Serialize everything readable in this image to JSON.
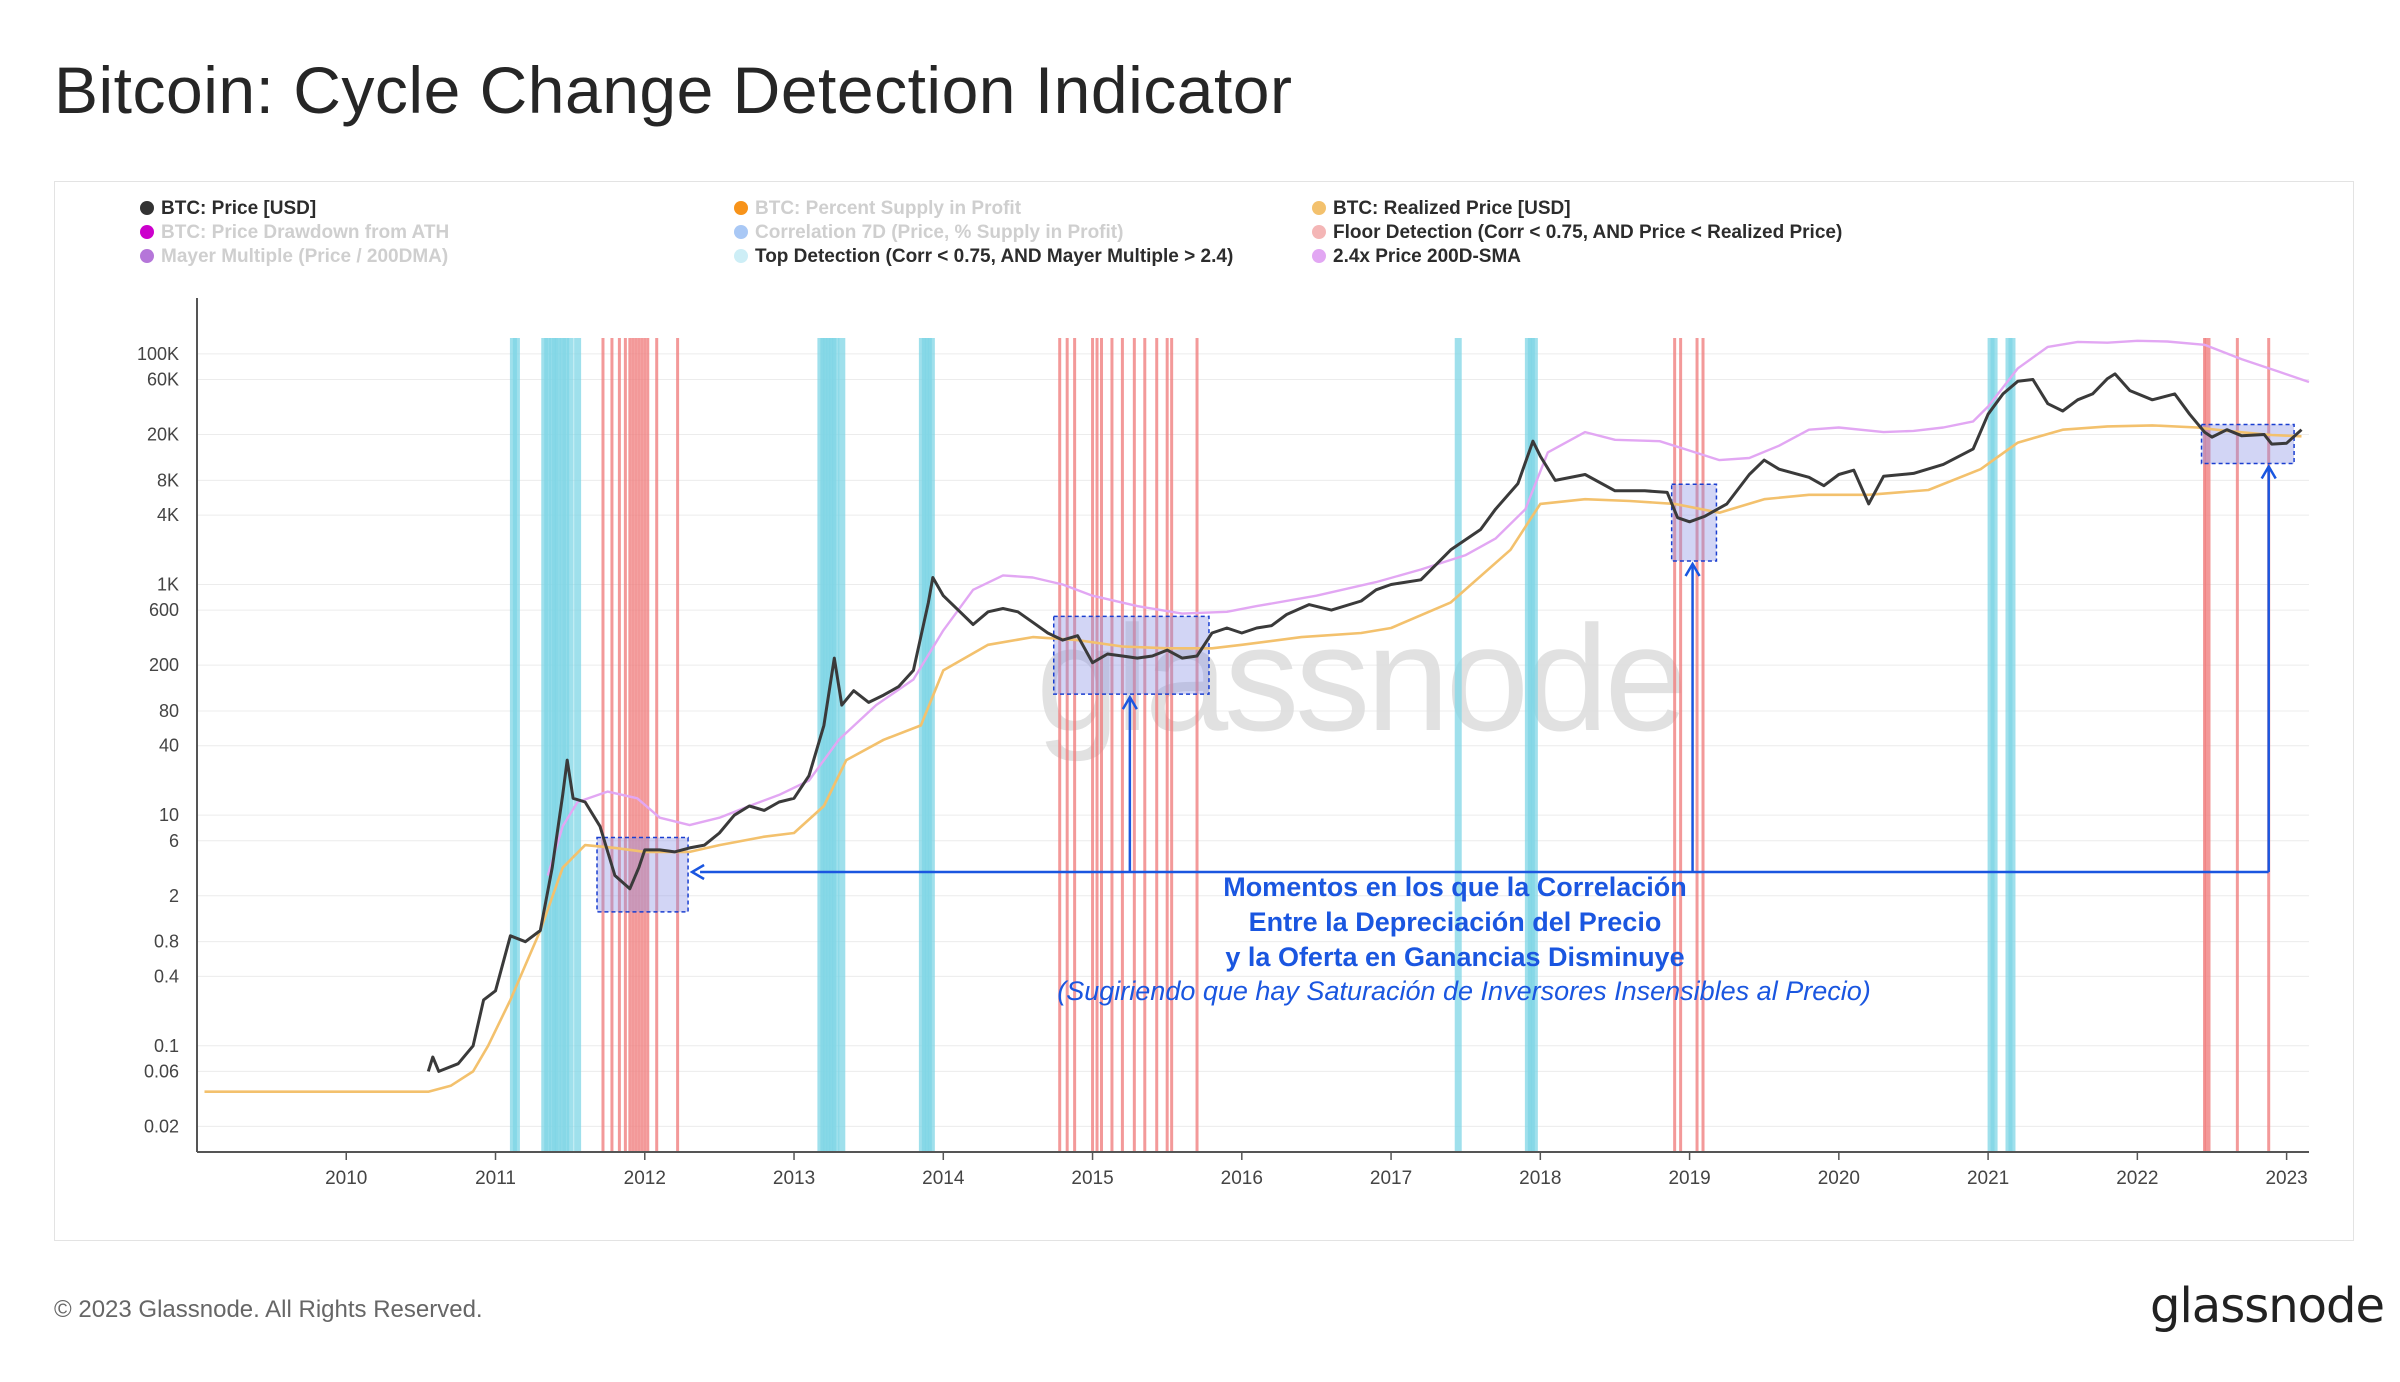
{
  "title": "Bitcoin: Cycle Change Detection Indicator",
  "footer": "© 2023 Glassnode. All Rights Reserved.",
  "brand": "glassnode",
  "chart_data": {
    "type": "line",
    "title": "Bitcoin: Cycle Change Detection Indicator",
    "watermark": "glassnode",
    "yscale": "log",
    "ylim": [
      0.012,
      250000
    ],
    "xlim": [
      2009.0,
      2023.15
    ],
    "y_ticks": [
      {
        "v": 0.02,
        "label": "0.02"
      },
      {
        "v": 0.06,
        "label": "0.06"
      },
      {
        "v": 0.1,
        "label": "0.1"
      },
      {
        "v": 0.4,
        "label": "0.4"
      },
      {
        "v": 0.8,
        "label": "0.8"
      },
      {
        "v": 2,
        "label": "2"
      },
      {
        "v": 6,
        "label": "6"
      },
      {
        "v": 10,
        "label": "10"
      },
      {
        "v": 40,
        "label": "40"
      },
      {
        "v": 80,
        "label": "80"
      },
      {
        "v": 200,
        "label": "200"
      },
      {
        "v": 600,
        "label": "600"
      },
      {
        "v": 1000,
        "label": "1K"
      },
      {
        "v": 4000,
        "label": "4K"
      },
      {
        "v": 8000,
        "label": "8K"
      },
      {
        "v": 20000,
        "label": "20K"
      },
      {
        "v": 60000,
        "label": "60K"
      },
      {
        "v": 100000,
        "label": "100K"
      }
    ],
    "x_ticks": [
      {
        "v": 2010,
        "label": "2010"
      },
      {
        "v": 2011,
        "label": "2011"
      },
      {
        "v": 2012,
        "label": "2012"
      },
      {
        "v": 2013,
        "label": "2013"
      },
      {
        "v": 2014,
        "label": "2014"
      },
      {
        "v": 2015,
        "label": "2015"
      },
      {
        "v": 2016,
        "label": "2016"
      },
      {
        "v": 2017,
        "label": "2017"
      },
      {
        "v": 2018,
        "label": "2018"
      },
      {
        "v": 2019,
        "label": "2019"
      },
      {
        "v": 2020,
        "label": "2020"
      },
      {
        "v": 2021,
        "label": "2021"
      },
      {
        "v": 2022,
        "label": "2022"
      },
      {
        "v": 2023,
        "label": "2023"
      }
    ],
    "legend": [
      {
        "label": "BTC: Price [USD]",
        "color": "#333333",
        "active": true
      },
      {
        "label": "BTC: Percent Supply in Profit",
        "color": "#f7931a",
        "active": false
      },
      {
        "label": "BTC: Realized Price [USD]",
        "color": "#f3c16d",
        "active": true
      },
      {
        "label": "BTC: Price Drawdown from ATH",
        "color": "#cc00cc",
        "active": false
      },
      {
        "label": "Correlation 7D (Price, % Supply in Profit)",
        "color": "#a9c8f5",
        "active": false
      },
      {
        "label": "Floor Detection (Corr < 0.75, AND Price < Realized Price)",
        "color": "#f4b6b6",
        "active": true
      },
      {
        "label": "Mayer Multiple (Price / 200DMA)",
        "color": "#b576d9",
        "active": false
      },
      {
        "label": "Top Detection (Corr < 0.75, AND Mayer Multiple > 2.4)",
        "color": "#cdeef6",
        "active": true
      },
      {
        "label": "2.4x Price 200D-SMA",
        "color": "#e2a7f3",
        "active": true
      }
    ],
    "annotation": {
      "lines": [
        "Momentos en los que la Correlación",
        "Entre la Depreciación del Precio",
        "y la Oferta en Ganancias Disminuye"
      ],
      "subtitle": "(Sugiriendo que hay Saturación de Inversores Insensibles al Precio)",
      "color": "#1a56e0"
    },
    "series": [
      {
        "name": "BTC: Price [USD]",
        "color": "#3a3a3a",
        "points": [
          [
            2010.55,
            0.06
          ],
          [
            2010.58,
            0.08
          ],
          [
            2010.62,
            0.06
          ],
          [
            2010.75,
            0.07
          ],
          [
            2010.85,
            0.1
          ],
          [
            2010.92,
            0.25
          ],
          [
            2011.0,
            0.3
          ],
          [
            2011.1,
            0.9
          ],
          [
            2011.2,
            0.8
          ],
          [
            2011.3,
            1.0
          ],
          [
            2011.38,
            3.5
          ],
          [
            2011.45,
            15
          ],
          [
            2011.48,
            30
          ],
          [
            2011.52,
            14
          ],
          [
            2011.6,
            13
          ],
          [
            2011.7,
            8
          ],
          [
            2011.8,
            3
          ],
          [
            2011.9,
            2.3
          ],
          [
            2011.96,
            3.5
          ],
          [
            2012.0,
            5
          ],
          [
            2012.1,
            5
          ],
          [
            2012.2,
            4.8
          ],
          [
            2012.3,
            5.2
          ],
          [
            2012.4,
            5.5
          ],
          [
            2012.5,
            7
          ],
          [
            2012.6,
            10
          ],
          [
            2012.7,
            12
          ],
          [
            2012.8,
            11
          ],
          [
            2012.9,
            13
          ],
          [
            2013.0,
            14
          ],
          [
            2013.1,
            22
          ],
          [
            2013.2,
            60
          ],
          [
            2013.27,
            230
          ],
          [
            2013.32,
            90
          ],
          [
            2013.4,
            120
          ],
          [
            2013.5,
            95
          ],
          [
            2013.6,
            110
          ],
          [
            2013.7,
            130
          ],
          [
            2013.8,
            180
          ],
          [
            2013.9,
            700
          ],
          [
            2013.93,
            1150
          ],
          [
            2014.0,
            800
          ],
          [
            2014.1,
            600
          ],
          [
            2014.2,
            450
          ],
          [
            2014.3,
            580
          ],
          [
            2014.4,
            620
          ],
          [
            2014.5,
            580
          ],
          [
            2014.6,
            470
          ],
          [
            2014.7,
            380
          ],
          [
            2014.8,
            330
          ],
          [
            2014.9,
            360
          ],
          [
            2015.0,
            210
          ],
          [
            2015.1,
            250
          ],
          [
            2015.2,
            240
          ],
          [
            2015.3,
            230
          ],
          [
            2015.4,
            240
          ],
          [
            2015.5,
            270
          ],
          [
            2015.6,
            230
          ],
          [
            2015.7,
            240
          ],
          [
            2015.8,
            380
          ],
          [
            2015.9,
            420
          ],
          [
            2016.0,
            380
          ],
          [
            2016.1,
            420
          ],
          [
            2016.2,
            440
          ],
          [
            2016.3,
            550
          ],
          [
            2016.45,
            670
          ],
          [
            2016.6,
            600
          ],
          [
            2016.8,
            720
          ],
          [
            2016.9,
            900
          ],
          [
            2017.0,
            1000
          ],
          [
            2017.2,
            1100
          ],
          [
            2017.4,
            2000
          ],
          [
            2017.6,
            3000
          ],
          [
            2017.7,
            4500
          ],
          [
            2017.85,
            7500
          ],
          [
            2017.95,
            17500
          ],
          [
            2018.0,
            13000
          ],
          [
            2018.1,
            8000
          ],
          [
            2018.3,
            9000
          ],
          [
            2018.5,
            6500
          ],
          [
            2018.7,
            6500
          ],
          [
            2018.85,
            6300
          ],
          [
            2018.92,
            3800
          ],
          [
            2019.0,
            3500
          ],
          [
            2019.1,
            3900
          ],
          [
            2019.25,
            5000
          ],
          [
            2019.4,
            9000
          ],
          [
            2019.5,
            12000
          ],
          [
            2019.6,
            10000
          ],
          [
            2019.8,
            8500
          ],
          [
            2019.9,
            7200
          ],
          [
            2020.0,
            9000
          ],
          [
            2020.1,
            9800
          ],
          [
            2020.2,
            5000
          ],
          [
            2020.3,
            8700
          ],
          [
            2020.5,
            9200
          ],
          [
            2020.7,
            11000
          ],
          [
            2020.9,
            15000
          ],
          [
            2021.0,
            30000
          ],
          [
            2021.1,
            45000
          ],
          [
            2021.2,
            58000
          ],
          [
            2021.3,
            60000
          ],
          [
            2021.4,
            37000
          ],
          [
            2021.5,
            32000
          ],
          [
            2021.6,
            40000
          ],
          [
            2021.7,
            45000
          ],
          [
            2021.8,
            61000
          ],
          [
            2021.85,
            67000
          ],
          [
            2021.95,
            48000
          ],
          [
            2022.1,
            40000
          ],
          [
            2022.25,
            45000
          ],
          [
            2022.35,
            30000
          ],
          [
            2022.45,
            21000
          ],
          [
            2022.5,
            19000
          ],
          [
            2022.6,
            22000
          ],
          [
            2022.7,
            19500
          ],
          [
            2022.85,
            20000
          ],
          [
            2022.9,
            16500
          ],
          [
            2023.0,
            16800
          ],
          [
            2023.1,
            22000
          ]
        ]
      },
      {
        "name": "BTC: Realized Price [USD]",
        "color": "#f3c16d",
        "points": [
          [
            2009.05,
            0.04
          ],
          [
            2010.55,
            0.04
          ],
          [
            2010.7,
            0.045
          ],
          [
            2010.85,
            0.06
          ],
          [
            2010.95,
            0.1
          ],
          [
            2011.1,
            0.25
          ],
          [
            2011.3,
            1.0
          ],
          [
            2011.45,
            3.5
          ],
          [
            2011.6,
            5.5
          ],
          [
            2011.8,
            5.2
          ],
          [
            2012.0,
            4.8
          ],
          [
            2012.3,
            4.8
          ],
          [
            2012.5,
            5.5
          ],
          [
            2012.8,
            6.5
          ],
          [
            2013.0,
            7
          ],
          [
            2013.2,
            12
          ],
          [
            2013.35,
            30
          ],
          [
            2013.6,
            45
          ],
          [
            2013.85,
            60
          ],
          [
            2014.0,
            180
          ],
          [
            2014.3,
            300
          ],
          [
            2014.6,
            350
          ],
          [
            2014.9,
            330
          ],
          [
            2015.2,
            290
          ],
          [
            2015.5,
            280
          ],
          [
            2015.8,
            280
          ],
          [
            2016.0,
            300
          ],
          [
            2016.4,
            350
          ],
          [
            2016.8,
            380
          ],
          [
            2017.0,
            420
          ],
          [
            2017.4,
            700
          ],
          [
            2017.8,
            2000
          ],
          [
            2018.0,
            5000
          ],
          [
            2018.3,
            5500
          ],
          [
            2018.6,
            5300
          ],
          [
            2018.9,
            5000
          ],
          [
            2019.2,
            4200
          ],
          [
            2019.5,
            5500
          ],
          [
            2019.8,
            6000
          ],
          [
            2020.2,
            6000
          ],
          [
            2020.6,
            6600
          ],
          [
            2020.95,
            10000
          ],
          [
            2021.2,
            17000
          ],
          [
            2021.5,
            22000
          ],
          [
            2021.8,
            23500
          ],
          [
            2022.1,
            24000
          ],
          [
            2022.4,
            23000
          ],
          [
            2022.6,
            21500
          ],
          [
            2022.9,
            19800
          ],
          [
            2023.1,
            19300
          ]
        ]
      },
      {
        "name": "2.4x Price 200D-SMA",
        "color": "#e2a7f3",
        "points": [
          [
            2011.35,
            3.0
          ],
          [
            2011.45,
            8
          ],
          [
            2011.55,
            13
          ],
          [
            2011.75,
            16
          ],
          [
            2011.95,
            14
          ],
          [
            2012.1,
            9.5
          ],
          [
            2012.3,
            8.2
          ],
          [
            2012.5,
            9.5
          ],
          [
            2012.7,
            12
          ],
          [
            2012.9,
            15
          ],
          [
            2013.1,
            20
          ],
          [
            2013.3,
            45
          ],
          [
            2013.55,
            90
          ],
          [
            2013.8,
            150
          ],
          [
            2014.0,
            400
          ],
          [
            2014.2,
            900
          ],
          [
            2014.4,
            1200
          ],
          [
            2014.6,
            1150
          ],
          [
            2014.8,
            1000
          ],
          [
            2015.0,
            800
          ],
          [
            2015.3,
            650
          ],
          [
            2015.6,
            560
          ],
          [
            2015.9,
            580
          ],
          [
            2016.1,
            650
          ],
          [
            2016.5,
            800
          ],
          [
            2016.9,
            1050
          ],
          [
            2017.2,
            1350
          ],
          [
            2017.5,
            1800
          ],
          [
            2017.7,
            2500
          ],
          [
            2017.9,
            4500
          ],
          [
            2018.05,
            14000
          ],
          [
            2018.3,
            21000
          ],
          [
            2018.5,
            18000
          ],
          [
            2018.8,
            17500
          ],
          [
            2019.0,
            14500
          ],
          [
            2019.2,
            12000
          ],
          [
            2019.4,
            12500
          ],
          [
            2019.6,
            16000
          ],
          [
            2019.8,
            22000
          ],
          [
            2020.0,
            23000
          ],
          [
            2020.3,
            21000
          ],
          [
            2020.5,
            21500
          ],
          [
            2020.7,
            23000
          ],
          [
            2020.9,
            26000
          ],
          [
            2021.0,
            35000
          ],
          [
            2021.2,
            75000
          ],
          [
            2021.4,
            115000
          ],
          [
            2021.6,
            127000
          ],
          [
            2021.8,
            125000
          ],
          [
            2022.0,
            130000
          ],
          [
            2022.2,
            128000
          ],
          [
            2022.45,
            120000
          ],
          [
            2022.7,
            90000
          ],
          [
            2022.95,
            70000
          ],
          [
            2023.15,
            57000
          ]
        ]
      }
    ],
    "floor_detection_x": [
      2011.72,
      2011.78,
      2011.83,
      2011.87,
      2011.9,
      2011.92,
      2011.94,
      2011.96,
      2011.98,
      2012.0,
      2012.02,
      2012.08,
      2012.22,
      2014.78,
      2014.83,
      2014.88,
      2015.0,
      2015.03,
      2015.06,
      2015.13,
      2015.2,
      2015.28,
      2015.35,
      2015.43,
      2015.5,
      2015.53,
      2015.7,
      2018.9,
      2018.94,
      2019.05,
      2019.09,
      2022.45,
      2022.46,
      2022.48,
      2022.67,
      2022.88
    ],
    "top_detection_x": [
      2011.12,
      2011.14,
      2011.33,
      2011.35,
      2011.38,
      2011.4,
      2011.42,
      2011.45,
      2011.47,
      2011.5,
      2011.55,
      2013.18,
      2013.2,
      2013.22,
      2013.24,
      2013.26,
      2013.28,
      2013.32,
      2013.86,
      2013.88,
      2013.9,
      2013.92,
      2017.45,
      2017.92,
      2017.94,
      2017.96,
      2021.02,
      2021.04,
      2021.14,
      2021.16
    ],
    "highlight_boxes": [
      {
        "x0": 2011.68,
        "x1": 2012.29,
        "y0": 1.45,
        "y1": 6.4
      },
      {
        "x0": 2014.74,
        "x1": 2015.78,
        "y0": 112,
        "y1": 530
      },
      {
        "x0": 2018.88,
        "x1": 2019.18,
        "y0": 1600,
        "y1": 7400
      },
      {
        "x0": 2022.43,
        "x1": 2023.05,
        "y0": 11200,
        "y1": 24400
      }
    ]
  }
}
